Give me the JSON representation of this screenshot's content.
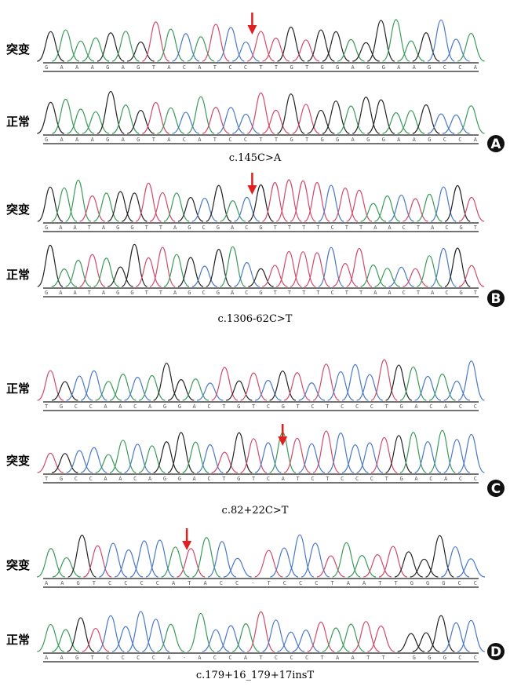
{
  "panels": [
    {
      "letter": "A",
      "caption": "c.145C>A",
      "traces": [
        {
          "label": "突变",
          "bases": "GAAAGAGTACATCCTTGTGGAGGAAGCCA"
        },
        {
          "label": "正常",
          "bases": "GAAAGAGTACATCCTTGTGGAGGAAGCCA"
        }
      ]
    },
    {
      "letter": "B",
      "caption": "c.1306-62C>T",
      "traces": [
        {
          "label": "突变",
          "bases": "GAATAGGTTAGCGACGTTTTCTTAACTACGT"
        },
        {
          "label": "正常",
          "bases": "GAATAGGTTAGCGACGTTTTCTTAACTACGT"
        }
      ]
    },
    {
      "letter": "C",
      "caption": "c.82+22C>T",
      "traces": [
        {
          "label": "正常",
          "bases": "TGCCAACAGGACTGTCGTCTCCCTGACACC"
        },
        {
          "label": "突变",
          "bases": "TGCCAACAGGACTGTCATCTCCCTGACACC"
        }
      ]
    },
    {
      "letter": "D",
      "caption": "c.179+16_179+17insT",
      "traces": [
        {
          "label": "突变",
          "bases": "AAGTCCCCATACC-TCCCTAATTGGGCC"
        },
        {
          "label": "正常",
          "bases": "AAGTCCCCA-ACCATCCCTAATT-GGGCC"
        }
      ]
    }
  ]
}
